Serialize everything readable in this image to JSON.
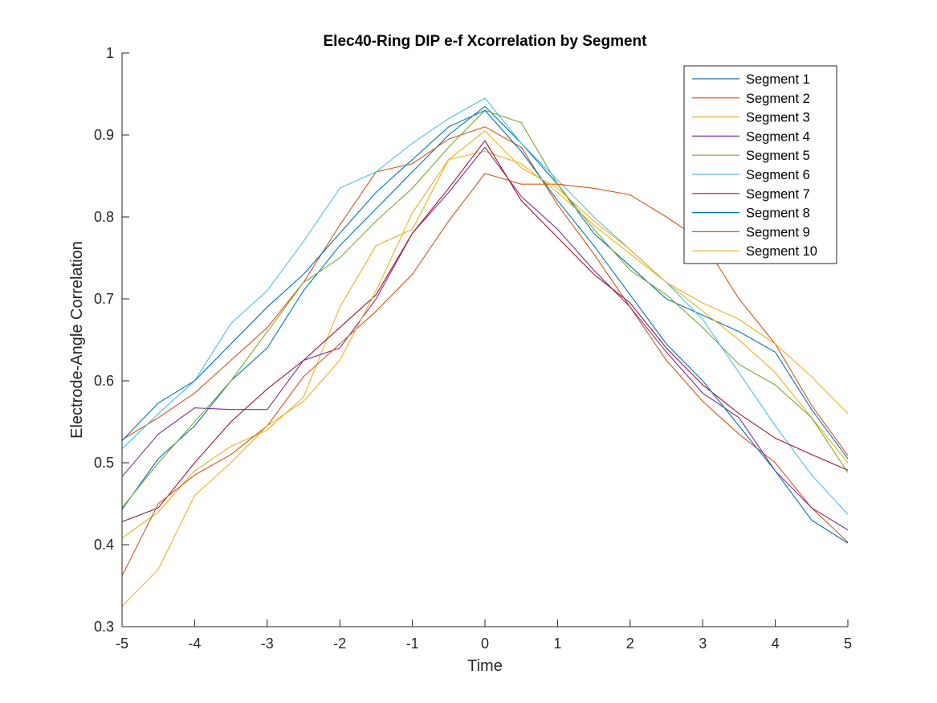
{
  "chart_data": {
    "type": "line",
    "title": "Elec40-Ring DIP e-f Xcorrelation by Segment",
    "xlabel": "Time",
    "ylabel": "Electrode-Angle Correlation",
    "xlim": [
      -5,
      5
    ],
    "ylim": [
      0.3,
      1
    ],
    "xticks": [
      "-5",
      "-4",
      "-3",
      "-2",
      "-1",
      "0",
      "1",
      "2",
      "3",
      "4",
      "5"
    ],
    "yticks": [
      "0.3",
      "0.4",
      "0.5",
      "0.6",
      "0.7",
      "0.8",
      "0.9",
      "1"
    ],
    "grid": false,
    "legend_position": "top-right",
    "series": [
      {
        "name": "Segment 1",
        "color": "#0072BD",
        "x": [
          -5,
          -4.5,
          -4,
          -3.5,
          -3,
          -2.5,
          -2,
          -1.5,
          -1,
          -0.5,
          0,
          0.5,
          1,
          1.5,
          2,
          2.5,
          3,
          3.5,
          4,
          4.5,
          5
        ],
        "y": [
          0.443,
          0.505,
          0.545,
          0.6,
          0.64,
          0.71,
          0.765,
          0.81,
          0.855,
          0.9,
          0.935,
          0.89,
          0.84,
          0.78,
          0.74,
          0.7,
          0.68,
          0.66,
          0.635,
          0.565,
          0.505
        ]
      },
      {
        "name": "Segment 2",
        "color": "#D95319",
        "x": [
          -5,
          -4.5,
          -4,
          -3.5,
          -3,
          -2.5,
          -2,
          -1.5,
          -1,
          -0.5,
          0,
          0.5,
          1,
          1.5,
          2,
          2.5,
          3,
          3.5,
          4,
          4.5,
          5
        ],
        "y": [
          0.528,
          0.555,
          0.585,
          0.625,
          0.665,
          0.72,
          0.79,
          0.855,
          0.865,
          0.895,
          0.91,
          0.885,
          0.815,
          0.755,
          0.69,
          0.625,
          0.575,
          0.535,
          0.5,
          0.445,
          0.403
        ]
      },
      {
        "name": "Segment 3",
        "color": "#EDB120",
        "x": [
          -5,
          -4.5,
          -4,
          -3.5,
          -3,
          -2.5,
          -2,
          -1.5,
          -1,
          -0.5,
          0,
          0.5,
          1,
          1.5,
          2,
          2.5,
          3,
          3.5,
          4,
          4.5,
          5
        ],
        "y": [
          0.408,
          0.44,
          0.49,
          0.52,
          0.54,
          0.58,
          0.69,
          0.765,
          0.785,
          0.87,
          0.88,
          0.865,
          0.83,
          0.79,
          0.755,
          0.72,
          0.685,
          0.65,
          0.61,
          0.555,
          0.5
        ]
      },
      {
        "name": "Segment 4",
        "color": "#7E2F8E",
        "x": [
          -5,
          -4.5,
          -4,
          -3.5,
          -3,
          -2.5,
          -2,
          -1.5,
          -1,
          -0.5,
          0,
          0.5,
          1,
          1.5,
          2,
          2.5,
          3,
          3.5,
          4,
          4.5,
          5
        ],
        "y": [
          0.483,
          0.535,
          0.567,
          0.565,
          0.565,
          0.625,
          0.64,
          0.7,
          0.78,
          0.83,
          0.885,
          0.825,
          0.785,
          0.735,
          0.69,
          0.635,
          0.585,
          0.555,
          0.49,
          0.445,
          0.418
        ]
      },
      {
        "name": "Segment 5",
        "color": "#77AC30",
        "x": [
          -5,
          -4.5,
          -4,
          -3.5,
          -3,
          -2.5,
          -2,
          -1.5,
          -1,
          -0.5,
          0,
          0.5,
          1,
          1.5,
          2,
          2.5,
          3,
          3.5,
          4,
          4.5,
          5
        ],
        "y": [
          0.445,
          0.5,
          0.55,
          0.6,
          0.66,
          0.72,
          0.75,
          0.795,
          0.835,
          0.885,
          0.93,
          0.915,
          0.84,
          0.785,
          0.735,
          0.705,
          0.665,
          0.62,
          0.595,
          0.555,
          0.488
        ]
      },
      {
        "name": "Segment 6",
        "color": "#4DBEEE",
        "x": [
          -5,
          -4.5,
          -4,
          -3.5,
          -3,
          -2.5,
          -2,
          -1.5,
          -1,
          -0.5,
          0,
          0.5,
          1,
          1.5,
          2,
          2.5,
          3,
          3.5,
          4,
          4.5,
          5
        ],
        "y": [
          0.517,
          0.56,
          0.6,
          0.67,
          0.71,
          0.77,
          0.835,
          0.855,
          0.89,
          0.92,
          0.945,
          0.89,
          0.845,
          0.8,
          0.76,
          0.72,
          0.675,
          0.61,
          0.545,
          0.485,
          0.437
        ]
      },
      {
        "name": "Segment 7",
        "color": "#A2142F",
        "x": [
          -5,
          -4.5,
          -4,
          -3.5,
          -3,
          -2.5,
          -2,
          -1.5,
          -1,
          -0.5,
          0,
          0.5,
          1,
          1.5,
          2,
          2.5,
          3,
          3.5,
          4,
          4.5,
          5
        ],
        "y": [
          0.428,
          0.445,
          0.5,
          0.55,
          0.59,
          0.625,
          0.665,
          0.705,
          0.78,
          0.835,
          0.893,
          0.82,
          0.775,
          0.73,
          0.695,
          0.64,
          0.595,
          0.56,
          0.53,
          0.51,
          0.491
        ]
      },
      {
        "name": "Segment 8",
        "color": "#0072BD",
        "x": [
          -5,
          -4.5,
          -4,
          -3.5,
          -3,
          -2.5,
          -2,
          -1.5,
          -1,
          -0.5,
          0,
          0.5,
          1,
          1.5,
          2,
          2.5,
          3,
          3.5,
          4,
          4.5,
          5
        ],
        "y": [
          0.527,
          0.573,
          0.6,
          0.645,
          0.69,
          0.73,
          0.78,
          0.83,
          0.87,
          0.91,
          0.93,
          0.88,
          0.82,
          0.765,
          0.705,
          0.645,
          0.6,
          0.545,
          0.49,
          0.43,
          0.402
        ]
      },
      {
        "name": "Segment 9",
        "color": "#D95319",
        "x": [
          -5,
          -4.5,
          -4,
          -3.5,
          -3,
          -2.5,
          -2,
          -1.5,
          -1,
          -0.5,
          0,
          0.5,
          1,
          1.5,
          2,
          2.5,
          3,
          3.5,
          4,
          4.5,
          5
        ],
        "y": [
          0.362,
          0.45,
          0.485,
          0.51,
          0.545,
          0.605,
          0.645,
          0.685,
          0.73,
          0.795,
          0.853,
          0.84,
          0.84,
          0.835,
          0.827,
          0.8,
          0.77,
          0.7,
          0.645,
          0.57,
          0.509
        ]
      },
      {
        "name": "Segment 10",
        "color": "#EDB120",
        "x": [
          -5,
          -4.5,
          -4,
          -3.5,
          -3,
          -2.5,
          -2,
          -1.5,
          -1,
          -0.5,
          0,
          0.5,
          1,
          1.5,
          2,
          2.5,
          3,
          3.5,
          4,
          4.5,
          5
        ],
        "y": [
          0.325,
          0.37,
          0.46,
          0.5,
          0.545,
          0.575,
          0.625,
          0.71,
          0.805,
          0.87,
          0.905,
          0.86,
          0.835,
          0.795,
          0.76,
          0.72,
          0.695,
          0.675,
          0.645,
          0.605,
          0.56
        ]
      }
    ]
  }
}
